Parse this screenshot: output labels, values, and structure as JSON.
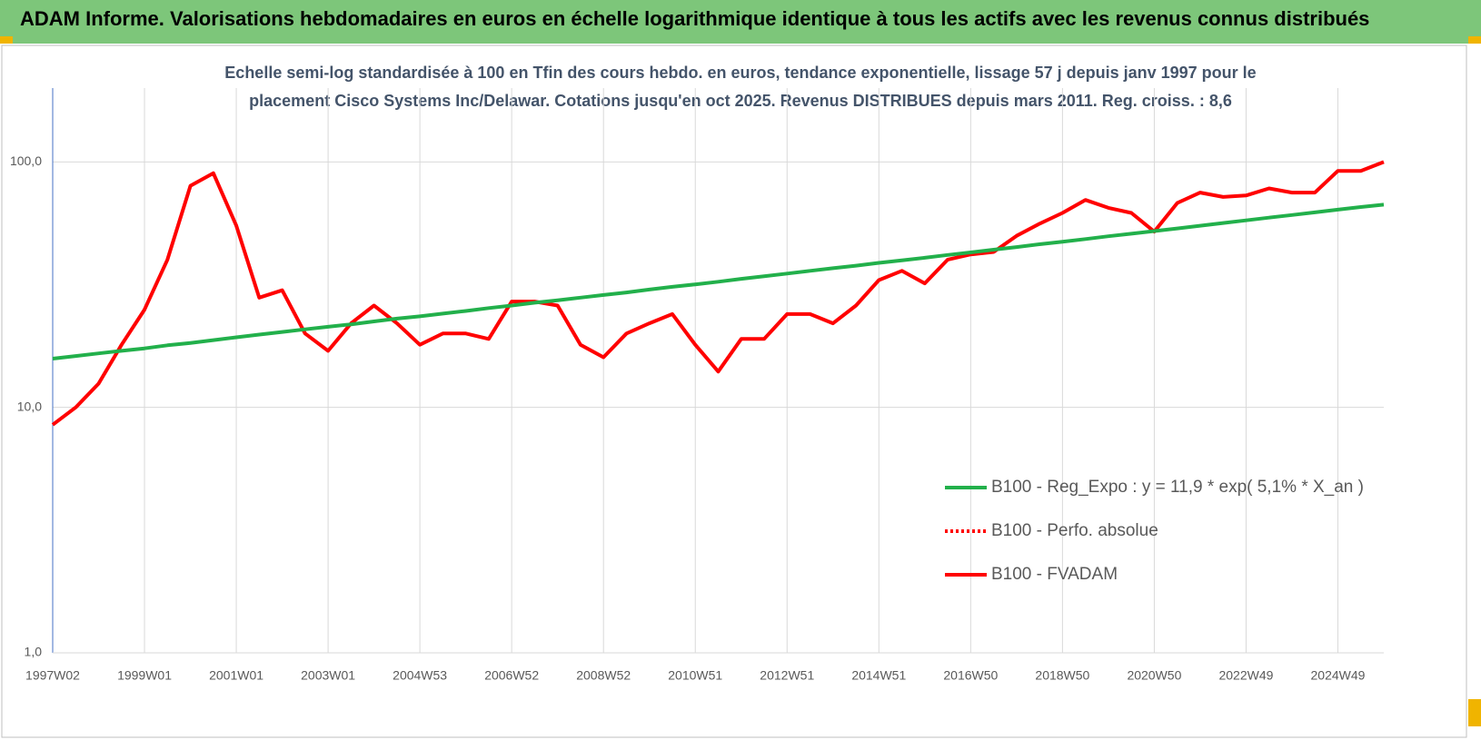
{
  "chart_data": {
    "type": "line",
    "title": "ADAM Informe. Valorisations hebdomadaires en euros en échelle logarithmique identique à tous les actifs avec les revenus connus distribués",
    "subtitle": [
      "Echelle semi-log standardisée à 100 en Tfin des cours hebdo. en euros, tendance exponentielle, lissage 57 j depuis janv 1997 pour le",
      "placement Cisco Systems Inc/Delawar. Cotations jusqu'en oct 2025. Revenus DISTRIBUES depuis mars 2011. Reg. croiss. : 8,6"
    ],
    "log_scale": true,
    "grid": true,
    "ylim": [
      1,
      200
    ],
    "yticks": [
      {
        "value": 1,
        "label": "1,0"
      },
      {
        "value": 10,
        "label": "10,0"
      },
      {
        "value": 100,
        "label": "100,0"
      }
    ],
    "categories": [
      "1997W02",
      null,
      null,
      null,
      "1999W01",
      null,
      null,
      null,
      "2001W01",
      null,
      null,
      null,
      "2003W01",
      null,
      null,
      null,
      "2004W53",
      null,
      null,
      null,
      "2006W52",
      null,
      null,
      null,
      "2008W52",
      null,
      null,
      null,
      "2010W51",
      null,
      null,
      null,
      "2012W51",
      null,
      null,
      null,
      "2014W51",
      null,
      null,
      null,
      "2016W50",
      null,
      null,
      null,
      "2018W50",
      null,
      null,
      null,
      "2020W50",
      null,
      null,
      null,
      "2022W49",
      null,
      null,
      null,
      "2024W49",
      null,
      null
    ],
    "series": [
      {
        "name": "B100 - Reg_Expo : y = 11,9 * exp( 5,1% *  X_an )",
        "color": "#22b04b",
        "values": [
          15.8,
          16.2,
          16.6,
          17.0,
          17.4,
          17.9,
          18.3,
          18.8,
          19.3,
          19.8,
          20.3,
          20.8,
          21.3,
          21.8,
          22.4,
          23.0,
          23.5,
          24.1,
          24.7,
          25.4,
          26.0,
          26.7,
          27.3,
          28.0,
          28.7,
          29.4,
          30.2,
          31.0,
          31.7,
          32.5,
          33.4,
          34.2,
          35.1,
          36.0,
          36.9,
          37.8,
          38.8,
          39.7,
          40.7,
          41.8,
          42.8,
          43.9,
          45.0,
          46.2,
          47.3,
          48.5,
          49.8,
          51.0,
          52.3,
          53.6,
          55.0,
          56.4,
          57.8,
          59.3,
          60.8,
          62.3,
          63.9,
          65.5,
          67.0
        ]
      },
      {
        "name": "B100 - Perfo. absolue",
        "color": "#ff0000",
        "line_style": "dotted"
      },
      {
        "name": "B100 - FVADAM",
        "color": "#ff0000",
        "values": [
          8.5,
          10,
          12.5,
          18,
          25,
          40,
          80,
          90,
          55,
          28,
          30,
          20,
          17,
          22,
          26,
          22,
          18,
          20,
          20,
          19,
          27,
          27,
          26,
          18,
          16,
          20,
          22,
          24,
          18,
          14,
          19,
          19,
          24,
          24,
          22,
          26,
          33,
          36,
          32,
          40,
          42,
          43,
          50,
          56,
          62,
          70,
          65,
          62,
          52,
          68,
          75,
          72,
          73,
          78,
          75,
          75,
          92,
          92,
          100
        ]
      }
    ]
  }
}
